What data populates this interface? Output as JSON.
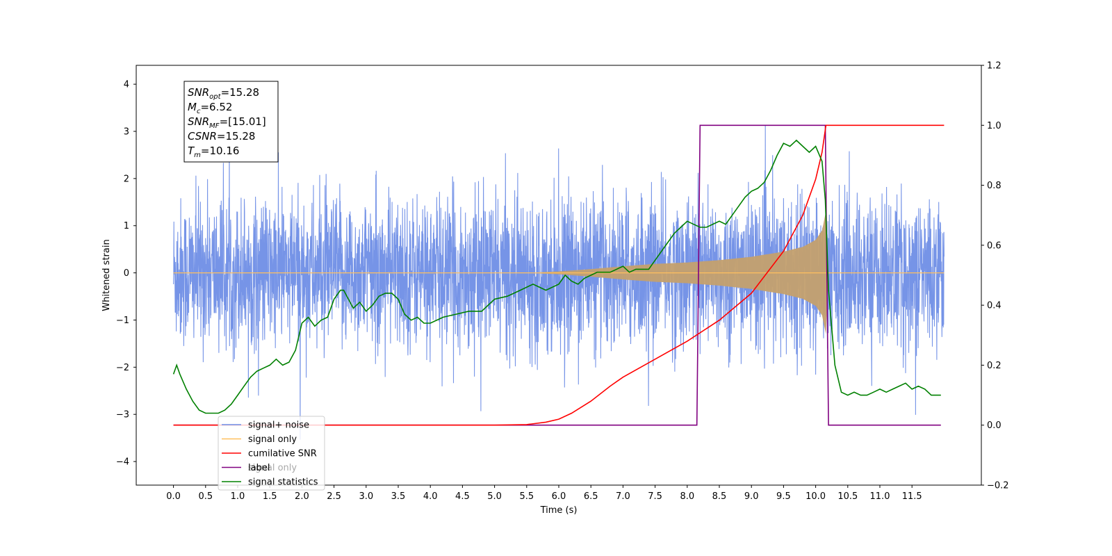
{
  "chart_data": {
    "type": "line",
    "xlabel": "Time (s)",
    "ylabel": "Whitened strain",
    "xlim": [
      -0.58,
      12.58
    ],
    "ylim": [
      -4.5,
      4.4
    ],
    "y2lim": [
      -0.2,
      1.2
    ],
    "x_ticks": [
      "0.0",
      "0.5",
      "1.0",
      "1.5",
      "2.0",
      "2.5",
      "3.0",
      "3.5",
      "4.0",
      "4.5",
      "5.0",
      "5.5",
      "6.0",
      "6.5",
      "7.0",
      "7.5",
      "8.0",
      "8.5",
      "9.0",
      "9.5",
      "10.0",
      "10.5",
      "11.0",
      "11.5"
    ],
    "y_ticks": [
      "4",
      "3",
      "2",
      "1",
      "0",
      "−1",
      "−2",
      "−3",
      "−4"
    ],
    "y2_ticks": [
      "1.2",
      "1.0",
      "0.8",
      "0.6",
      "0.4",
      "0.2",
      "0.0",
      "−0.2"
    ],
    "info_box": [
      {
        "main": "SNR",
        "sub": "opt",
        "value": "=15.28"
      },
      {
        "main": "M",
        "sub": "c",
        "value": "=6.52"
      },
      {
        "main": "SNR",
        "sub": "MF",
        "value": "=[15.01]"
      },
      {
        "main": "CSNR",
        "sub": "",
        "value": "=15.28"
      },
      {
        "main": "T",
        "sub": "m",
        "value": "=10.16"
      }
    ],
    "legend": {
      "placement": "lower-left",
      "entries": [
        {
          "label": "signal+ noise",
          "color": "#6f8ee6"
        },
        {
          "label": "signal only",
          "color": "#ffbf5e"
        },
        {
          "label": "cumilative SNR",
          "color": "#ff0000"
        },
        {
          "label": "label",
          "color": "#800080"
        },
        {
          "label": "signal statistics",
          "color": "#008000"
        }
      ],
      "ghost_text": "signal only"
    },
    "series": [
      {
        "name": "signal+ noise",
        "axis": "left",
        "color": "#6f8ee6",
        "description_values": {
          "noise_sigma": 1.0,
          "t_start": 0.0,
          "t_end": 12.0
        }
      },
      {
        "name": "signal only",
        "axis": "left",
        "color": "#ffbf5e",
        "envelope_x": [
          0.0,
          5.5,
          6.0,
          6.5,
          7.0,
          7.5,
          8.0,
          8.5,
          9.0,
          9.5,
          9.8,
          10.0,
          10.1,
          10.16,
          10.2,
          12.0
        ],
        "envelope_y": [
          0.0,
          0.0,
          0.03,
          0.08,
          0.14,
          0.19,
          0.22,
          0.27,
          0.34,
          0.45,
          0.55,
          0.7,
          0.9,
          1.3,
          0.0,
          0.0
        ]
      },
      {
        "name": "cumilative SNR",
        "axis": "right",
        "color": "#ff0000",
        "x": [
          0.0,
          5.0,
          5.5,
          5.8,
          6.0,
          6.2,
          6.5,
          6.8,
          7.0,
          7.5,
          8.0,
          8.5,
          9.0,
          9.5,
          9.8,
          10.0,
          10.1,
          10.16,
          12.0
        ],
        "y": [
          0.0,
          0.0,
          0.002,
          0.01,
          0.02,
          0.04,
          0.08,
          0.13,
          0.16,
          0.22,
          0.28,
          0.35,
          0.44,
          0.58,
          0.7,
          0.82,
          0.91,
          1.0,
          1.0
        ]
      },
      {
        "name": "label",
        "axis": "right",
        "color": "#800080",
        "x": [
          0.0,
          8.15,
          8.2,
          10.15,
          10.2,
          11.95
        ],
        "y": [
          0.0,
          0.0,
          1.0,
          1.0,
          0.0,
          0.0
        ]
      },
      {
        "name": "signal statistics",
        "axis": "right",
        "color": "#008000",
        "x": [
          0.0,
          0.05,
          0.1,
          0.2,
          0.3,
          0.4,
          0.5,
          0.6,
          0.7,
          0.8,
          0.9,
          1.0,
          1.1,
          1.2,
          1.3,
          1.4,
          1.5,
          1.6,
          1.7,
          1.8,
          1.9,
          2.0,
          2.1,
          2.2,
          2.3,
          2.4,
          2.5,
          2.6,
          2.65,
          2.7,
          2.8,
          2.9,
          3.0,
          3.1,
          3.2,
          3.3,
          3.4,
          3.5,
          3.6,
          3.7,
          3.8,
          3.9,
          4.0,
          4.2,
          4.4,
          4.6,
          4.8,
          5.0,
          5.2,
          5.4,
          5.6,
          5.8,
          6.0,
          6.1,
          6.2,
          6.3,
          6.4,
          6.5,
          6.6,
          6.8,
          7.0,
          7.1,
          7.2,
          7.4,
          7.5,
          7.6,
          7.7,
          7.8,
          7.9,
          8.0,
          8.1,
          8.2,
          8.3,
          8.5,
          8.6,
          8.7,
          8.8,
          8.9,
          9.0,
          9.1,
          9.2,
          9.3,
          9.4,
          9.5,
          9.6,
          9.7,
          9.8,
          9.9,
          10.0,
          10.1,
          10.15,
          10.2,
          10.3,
          10.4,
          10.5,
          10.6,
          10.7,
          10.8,
          10.9,
          11.0,
          11.1,
          11.2,
          11.3,
          11.4,
          11.5,
          11.6,
          11.7,
          11.8,
          11.95
        ],
        "y": [
          0.17,
          0.2,
          0.17,
          0.12,
          0.08,
          0.05,
          0.04,
          0.04,
          0.04,
          0.05,
          0.07,
          0.1,
          0.13,
          0.16,
          0.18,
          0.19,
          0.2,
          0.22,
          0.2,
          0.21,
          0.25,
          0.34,
          0.36,
          0.33,
          0.35,
          0.36,
          0.42,
          0.45,
          0.45,
          0.43,
          0.39,
          0.41,
          0.38,
          0.4,
          0.43,
          0.44,
          0.44,
          0.42,
          0.37,
          0.35,
          0.36,
          0.34,
          0.34,
          0.36,
          0.37,
          0.38,
          0.38,
          0.42,
          0.43,
          0.45,
          0.47,
          0.45,
          0.47,
          0.5,
          0.48,
          0.47,
          0.49,
          0.5,
          0.51,
          0.51,
          0.53,
          0.51,
          0.52,
          0.52,
          0.55,
          0.58,
          0.61,
          0.64,
          0.66,
          0.68,
          0.67,
          0.66,
          0.66,
          0.68,
          0.67,
          0.7,
          0.73,
          0.76,
          0.78,
          0.79,
          0.81,
          0.85,
          0.9,
          0.94,
          0.93,
          0.95,
          0.93,
          0.91,
          0.93,
          0.88,
          0.75,
          0.45,
          0.2,
          0.11,
          0.1,
          0.11,
          0.1,
          0.1,
          0.11,
          0.12,
          0.11,
          0.12,
          0.13,
          0.14,
          0.12,
          0.13,
          0.12,
          0.1,
          0.1
        ]
      }
    ]
  }
}
